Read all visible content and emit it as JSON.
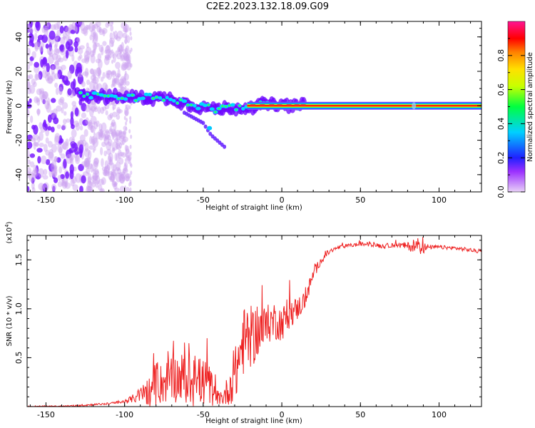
{
  "title": "C2E2.2023.132.18.09.G09",
  "chart_data": [
    {
      "type": "heatmap",
      "xlabel": "Height of straight line (km)",
      "ylabel": "Frequency (Hz)",
      "xlim": [
        -162,
        127
      ],
      "ylim": [
        -50,
        49
      ],
      "x_ticks": [
        -150,
        -100,
        -50,
        0,
        50,
        100
      ],
      "y_ticks": [
        -40,
        -20,
        0,
        20,
        40
      ],
      "colorbar": {
        "label": "Normalized spectral amplitude",
        "range": [
          0,
          1
        ],
        "ticks": [
          "0.0",
          "0.2",
          "0.4",
          "0.6",
          "0.8"
        ],
        "colors": [
          "#e6c8f5",
          "#8000ff",
          "#1a1aff",
          "#00c8ff",
          "#00ff40",
          "#fff000",
          "#ff8000",
          "#ff0000",
          "#ff1493"
        ]
      },
      "features": {
        "scatter_noise_x_range": [
          -162,
          -97
        ],
        "main_band": [
          {
            "x": -130,
            "y": 7
          },
          {
            "x": -110,
            "y": 5
          },
          {
            "x": -90,
            "y": 5
          },
          {
            "x": -70,
            "y": 4
          },
          {
            "x": -55,
            "y": 0
          },
          {
            "x": -40,
            "y": -2
          },
          {
            "x": -25,
            "y": -1
          },
          {
            "x": -10,
            "y": 1
          },
          {
            "x": 0,
            "y": 0
          },
          {
            "x": 15,
            "y": 0
          },
          {
            "x": 127,
            "y": 0
          }
        ],
        "branch": [
          {
            "x": -62,
            "y": -4
          },
          {
            "x": -50,
            "y": -10
          },
          {
            "x": -45,
            "y": -17
          },
          {
            "x": -35,
            "y": -25
          }
        ]
      }
    },
    {
      "type": "line",
      "xlabel": "Height of straight line (km)",
      "ylabel": "SNR (10 * v/v)",
      "y_multiplier": "(x10",
      "y_multiplier_exp": "4",
      "xlim": [
        -162,
        127
      ],
      "ylim": [
        0,
        1.75
      ],
      "x_ticks": [
        -150,
        -100,
        -50,
        0,
        50,
        100
      ],
      "y_ticks": [
        0.5,
        1.0,
        1.5
      ],
      "y_tick_labels": [
        "0.5",
        "1.0",
        "1.5"
      ],
      "color": "#ee2222",
      "series": [
        {
          "x": [
            -162,
            -140,
            -120,
            -110,
            -100,
            -95,
            -90,
            -85,
            -80,
            -75,
            -70,
            -65,
            -60,
            -55,
            -50,
            -45,
            -42,
            -38,
            -35,
            -30,
            -27,
            -25,
            -22,
            -18,
            -15,
            -12,
            -8,
            -5,
            0,
            5,
            10,
            15,
            20,
            25,
            30,
            35,
            40,
            45,
            50,
            55,
            60,
            65,
            70,
            75,
            80,
            85,
            88,
            90,
            95,
            100,
            110,
            120,
            127
          ],
          "values": [
            0.0,
            0.0,
            0.02,
            0.03,
            0.05,
            0.08,
            0.12,
            0.15,
            0.2,
            0.25,
            0.28,
            0.3,
            0.27,
            0.25,
            0.25,
            0.2,
            0.1,
            0.08,
            0.15,
            0.3,
            0.5,
            0.65,
            0.7,
            0.72,
            0.78,
            0.78,
            0.85,
            0.88,
            0.85,
            0.95,
            1.0,
            1.1,
            1.35,
            1.5,
            1.58,
            1.62,
            1.64,
            1.65,
            1.66,
            1.66,
            1.65,
            1.64,
            1.65,
            1.65,
            1.64,
            1.63,
            1.66,
            1.62,
            1.63,
            1.63,
            1.62,
            1.6,
            1.58
          ],
          "noise": [
            0.0,
            0.01,
            0.01,
            0.01,
            0.02,
            0.04,
            0.08,
            0.15,
            0.2,
            0.22,
            0.25,
            0.25,
            0.28,
            0.28,
            0.25,
            0.2,
            0.08,
            0.06,
            0.15,
            0.25,
            0.4,
            0.35,
            0.35,
            0.3,
            0.28,
            0.25,
            0.2,
            0.2,
            0.18,
            0.15,
            0.12,
            0.1,
            0.06,
            0.04,
            0.03,
            0.02,
            0.02,
            0.02,
            0.02,
            0.02,
            0.02,
            0.03,
            0.02,
            0.03,
            0.04,
            0.07,
            0.1,
            0.06,
            0.02,
            0.02,
            0.02,
            0.02,
            0.02
          ]
        }
      ]
    }
  ]
}
